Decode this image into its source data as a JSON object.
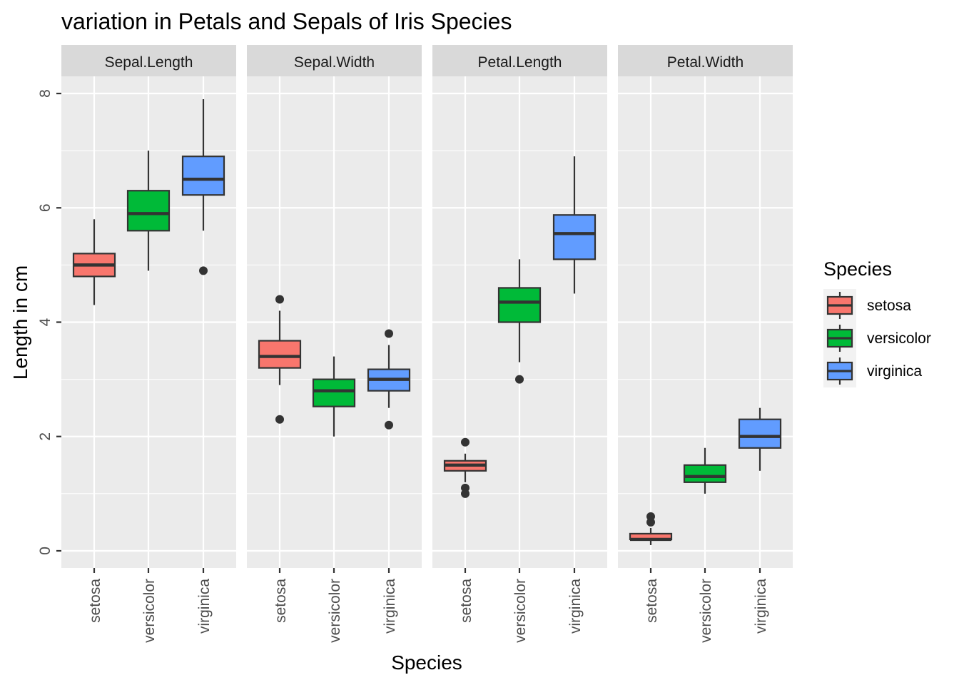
{
  "chart_data": {
    "type": "boxplot",
    "title": "variation in Petals and Sepals of Iris Species",
    "xlabel": "Species",
    "ylabel": "Length in cm",
    "ylim": [
      -0.3,
      8.3
    ],
    "yticks": [
      0,
      2,
      4,
      6,
      8
    ],
    "categories": [
      "setosa",
      "versicolor",
      "virginica"
    ],
    "grid": true,
    "legend": {
      "title": "Species",
      "position": "right",
      "entries": [
        "setosa",
        "versicolor",
        "virginica"
      ]
    },
    "colors": {
      "setosa": "#F8766D",
      "versicolor": "#00BA38",
      "virginica": "#619CFF",
      "panel_bg": "#EBEBEB",
      "strip_bg": "#D9D9D9",
      "box_line": "#333333"
    },
    "facets": [
      {
        "label": "Sepal.Length",
        "boxes": [
          {
            "category": "setosa",
            "lower_whisker": 4.3,
            "q1": 4.8,
            "median": 5.0,
            "q3": 5.2,
            "upper_whisker": 5.8,
            "outliers": []
          },
          {
            "category": "versicolor",
            "lower_whisker": 4.9,
            "q1": 5.6,
            "median": 5.9,
            "q3": 6.3,
            "upper_whisker": 7.0,
            "outliers": []
          },
          {
            "category": "virginica",
            "lower_whisker": 5.6,
            "q1": 6.225,
            "median": 6.5,
            "q3": 6.9,
            "upper_whisker": 7.9,
            "outliers": [
              4.9
            ]
          }
        ]
      },
      {
        "label": "Sepal.Width",
        "boxes": [
          {
            "category": "setosa",
            "lower_whisker": 2.9,
            "q1": 3.2,
            "median": 3.4,
            "q3": 3.675,
            "upper_whisker": 4.2,
            "outliers": [
              4.4,
              2.3
            ]
          },
          {
            "category": "versicolor",
            "lower_whisker": 2.0,
            "q1": 2.525,
            "median": 2.8,
            "q3": 3.0,
            "upper_whisker": 3.4,
            "outliers": []
          },
          {
            "category": "virginica",
            "lower_whisker": 2.5,
            "q1": 2.8,
            "median": 3.0,
            "q3": 3.175,
            "upper_whisker": 3.6,
            "outliers": [
              3.8,
              2.2
            ]
          }
        ]
      },
      {
        "label": "Petal.Length",
        "boxes": [
          {
            "category": "setosa",
            "lower_whisker": 1.2,
            "q1": 1.4,
            "median": 1.5,
            "q3": 1.575,
            "upper_whisker": 1.7,
            "outliers": [
              1.9,
              1.1,
              1.0
            ]
          },
          {
            "category": "versicolor",
            "lower_whisker": 3.3,
            "q1": 4.0,
            "median": 4.35,
            "q3": 4.6,
            "upper_whisker": 5.1,
            "outliers": [
              3.0
            ]
          },
          {
            "category": "virginica",
            "lower_whisker": 4.5,
            "q1": 5.1,
            "median": 5.55,
            "q3": 5.875,
            "upper_whisker": 6.9,
            "outliers": []
          }
        ]
      },
      {
        "label": "Petal.Width",
        "boxes": [
          {
            "category": "setosa",
            "lower_whisker": 0.1,
            "q1": 0.2,
            "median": 0.2,
            "q3": 0.3,
            "upper_whisker": 0.4,
            "outliers": [
              0.5,
              0.6
            ]
          },
          {
            "category": "versicolor",
            "lower_whisker": 1.0,
            "q1": 1.2,
            "median": 1.3,
            "q3": 1.5,
            "upper_whisker": 1.8,
            "outliers": []
          },
          {
            "category": "virginica",
            "lower_whisker": 1.4,
            "q1": 1.8,
            "median": 2.0,
            "q3": 2.3,
            "upper_whisker": 2.5,
            "outliers": []
          }
        ]
      }
    ]
  }
}
